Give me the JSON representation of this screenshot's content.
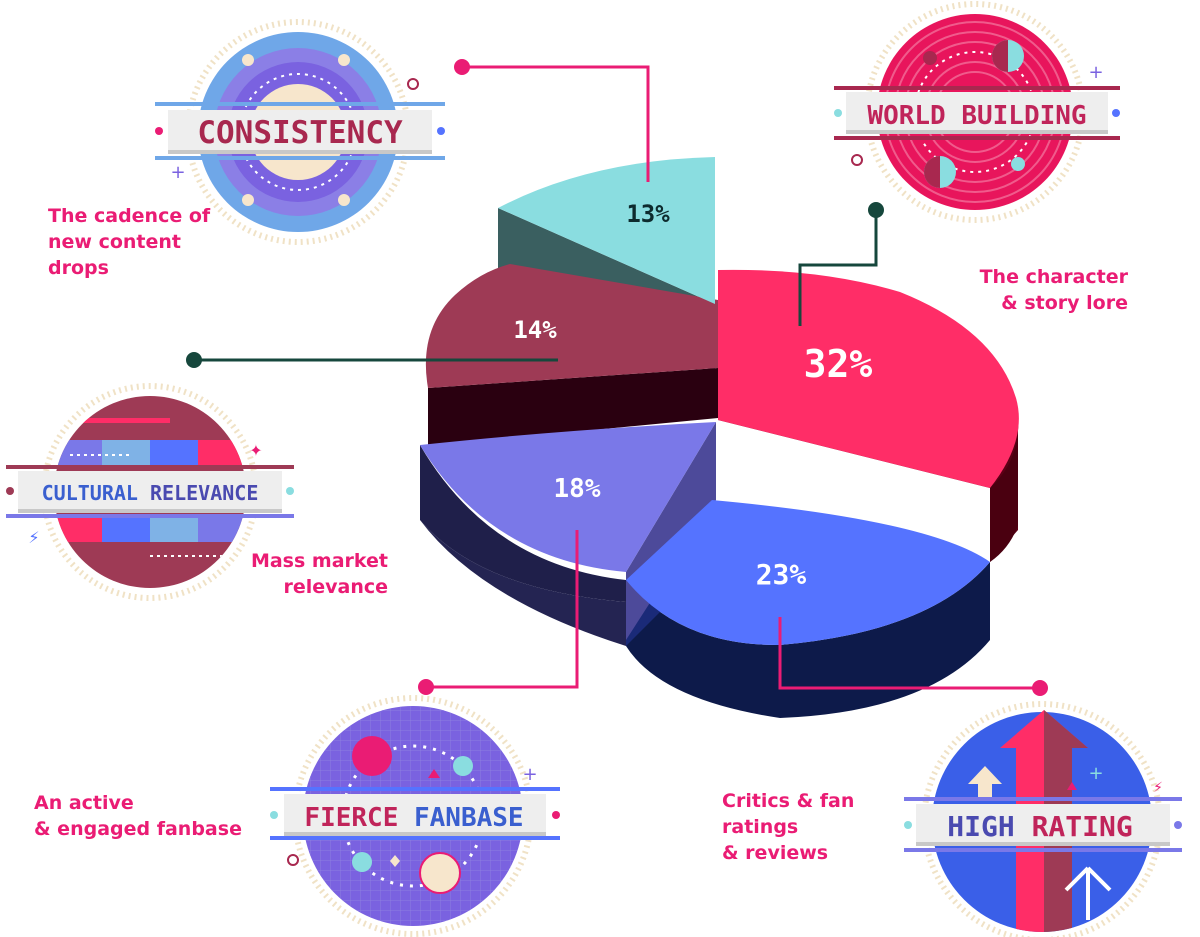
{
  "colors": {
    "accent_pink": "#ea1c74",
    "dark_green": "#16473c",
    "cyan": "#8adde0",
    "maroon": "#9e3a55",
    "red_pink": "#ff2d67",
    "purple": "#7a78e8",
    "blue": "#5573ff"
  },
  "chart_data": {
    "type": "pie",
    "slices": [
      {
        "key": "world_building",
        "label": "32%",
        "value": 32,
        "color": "#ff2d67",
        "side": "#5c0016"
      },
      {
        "key": "high_rating",
        "label": "23%",
        "value": 23,
        "color": "#5573ff",
        "side": "#0d1a4a"
      },
      {
        "key": "fierce_fanbase",
        "label": "18%",
        "value": 18,
        "color": "#7a78e8",
        "side": "#1f1f4a"
      },
      {
        "key": "cultural_relevance",
        "label": "14%",
        "value": 14,
        "color": "#9e3a55",
        "side": "#2a0010"
      },
      {
        "key": "consistency",
        "label": "13%",
        "value": 13,
        "color": "#8adde0",
        "side": "#3a5f60"
      }
    ]
  },
  "badges": {
    "consistency": {
      "title": "CONSISTENCY"
    },
    "world_building": {
      "title": "WORLD BUILDING"
    },
    "cultural_relevance": {
      "word1": "CULTURAL",
      "word2": "RELEVANCE"
    },
    "fierce_fanbase": {
      "word1": "FIERCE",
      "word2": "FANBASE"
    },
    "high_rating": {
      "word1": "HIGH",
      "word2": "RATING"
    }
  },
  "descriptions": {
    "consistency": "The cadence of\nnew content\ndrops",
    "world_building": "The character\n& story lore",
    "cultural_relevance": "Mass market\nrelevance",
    "fierce_fanbase": "An active\n& engaged fanbase",
    "high_rating": "Critics & fan\nratings\n& reviews"
  }
}
